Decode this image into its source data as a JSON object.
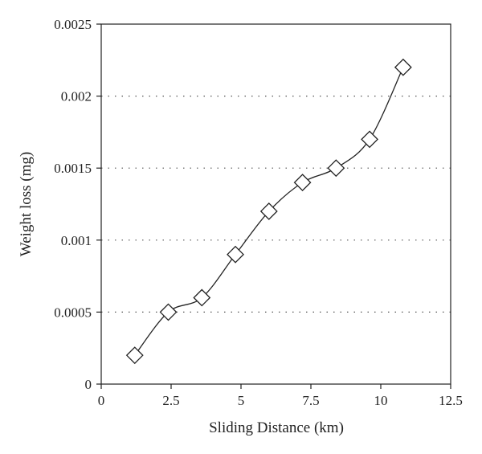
{
  "chart_data": {
    "type": "line",
    "title": "",
    "xlabel": "Sliding Distance (km)",
    "ylabel": "Weight loss (mg)",
    "xlim": [
      0,
      12.5
    ],
    "ylim": [
      0,
      0.0025
    ],
    "x_ticks": [
      0,
      2.5,
      5,
      7.5,
      10,
      12.5
    ],
    "x_tick_labels": [
      "0",
      "2.5",
      "5",
      "7.5",
      "10",
      "12.5"
    ],
    "y_ticks": [
      0,
      0.0005,
      0.001,
      0.0015,
      0.002,
      0.0025
    ],
    "y_tick_labels": [
      "0",
      "0.0005",
      "0.001",
      "0.0015",
      "0.002",
      "0.0025"
    ],
    "grid": "horizontal dotted",
    "marker": "diamond",
    "series": [
      {
        "x": [
          1.2,
          2.4,
          3.6,
          4.8,
          6.0,
          7.2,
          8.4,
          9.6,
          10.8
        ],
        "y": [
          0.0002,
          0.0005,
          0.0006,
          0.0009,
          0.0012,
          0.0014,
          0.0015,
          0.0017,
          0.0022
        ]
      }
    ]
  }
}
